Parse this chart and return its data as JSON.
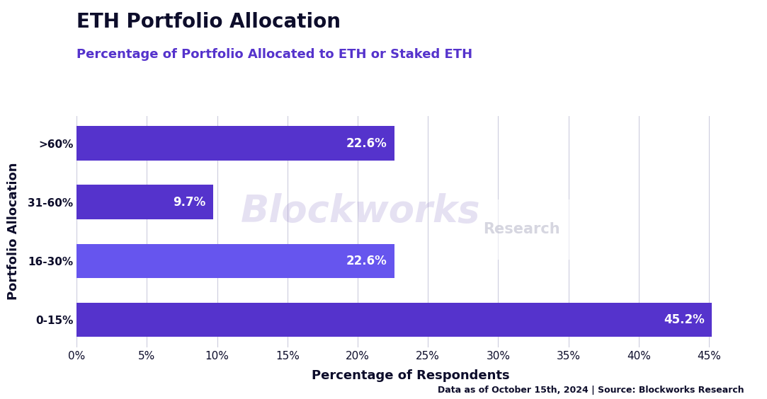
{
  "title": "ETH Portfolio Allocation",
  "subtitle": "Percentage of Portfolio Allocated to ETH or Staked ETH",
  "xlabel": "Percentage of Respondents",
  "ylabel": "Portfolio Allocation",
  "footnote": "Data as of October 15th, 2024 | Source: Blockworks Research",
  "categories": [
    "0-15%",
    "16-30%",
    "31-60%",
    ">60%"
  ],
  "values": [
    45.2,
    22.6,
    9.7,
    22.6
  ],
  "bar_color_top": "#5533dd",
  "bar_color_bottom": "#6644ee",
  "label_color": "#ffffff",
  "title_color": "#0d0d2b",
  "subtitle_color": "#5533cc",
  "xlabel_color": "#0d0d2b",
  "ylabel_color": "#0d0d2b",
  "footnote_color": "#0d0d2b",
  "background_color": "#ffffff",
  "grid_color": "#ccccdd",
  "xlim": [
    0,
    47.5
  ],
  "xticks": [
    0,
    5,
    10,
    15,
    20,
    25,
    30,
    35,
    40,
    45
  ],
  "title_fontsize": 20,
  "subtitle_fontsize": 13,
  "label_fontsize": 12,
  "axis_label_fontsize": 13,
  "tick_fontsize": 11,
  "footnote_fontsize": 9,
  "bar_height": 0.58
}
